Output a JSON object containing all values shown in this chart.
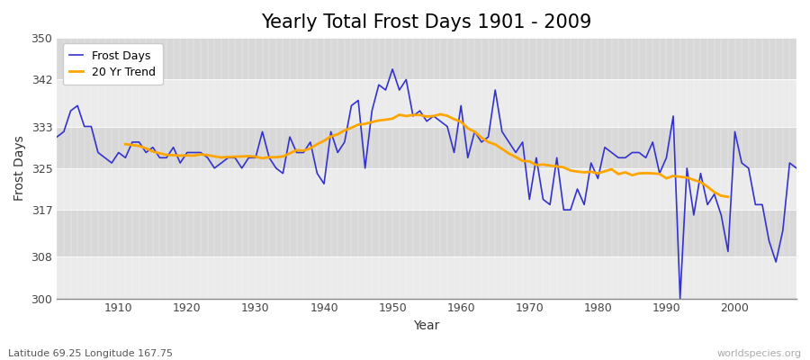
{
  "title": "Yearly Total Frost Days 1901 - 2009",
  "xlabel": "Year",
  "ylabel": "Frost Days",
  "subtitle": "Latitude 69.25 Longitude 167.75",
  "watermark": "worldspecies.org",
  "bg_color": "#ffffff",
  "plot_bg_color": "#e8e8e8",
  "band_color_light": "#ebebeb",
  "band_color_dark": "#d8d8d8",
  "line_color": "#3333cc",
  "trend_color": "#FFA500",
  "ylim": [
    300,
    350
  ],
  "yticks": [
    300,
    308,
    317,
    325,
    333,
    342,
    350
  ],
  "xlim": [
    1901,
    2009
  ],
  "xticks": [
    1910,
    1920,
    1930,
    1940,
    1950,
    1960,
    1970,
    1980,
    1990,
    2000
  ],
  "years": [
    1901,
    1902,
    1903,
    1904,
    1905,
    1906,
    1907,
    1908,
    1909,
    1910,
    1911,
    1912,
    1913,
    1914,
    1915,
    1916,
    1917,
    1918,
    1919,
    1920,
    1921,
    1922,
    1923,
    1924,
    1925,
    1926,
    1927,
    1928,
    1929,
    1930,
    1931,
    1932,
    1933,
    1934,
    1935,
    1936,
    1937,
    1938,
    1939,
    1940,
    1941,
    1942,
    1943,
    1944,
    1945,
    1946,
    1947,
    1948,
    1949,
    1950,
    1951,
    1952,
    1953,
    1954,
    1955,
    1956,
    1957,
    1958,
    1959,
    1960,
    1961,
    1962,
    1963,
    1964,
    1965,
    1966,
    1967,
    1968,
    1969,
    1970,
    1971,
    1972,
    1973,
    1974,
    1975,
    1976,
    1977,
    1978,
    1979,
    1980,
    1981,
    1982,
    1983,
    1984,
    1985,
    1986,
    1987,
    1988,
    1989,
    1990,
    1991,
    1992,
    1993,
    1994,
    1995,
    1996,
    1997,
    1998,
    1999,
    2000,
    2001,
    2002,
    2003,
    2004,
    2005,
    2006,
    2007,
    2008,
    2009
  ],
  "frost_days": [
    331,
    332,
    336,
    337,
    333,
    333,
    328,
    327,
    326,
    328,
    327,
    330,
    330,
    328,
    329,
    327,
    327,
    329,
    326,
    328,
    328,
    328,
    327,
    325,
    326,
    327,
    327,
    325,
    327,
    327,
    332,
    327,
    325,
    324,
    331,
    328,
    328,
    330,
    324,
    322,
    332,
    328,
    330,
    337,
    338,
    325,
    336,
    341,
    340,
    344,
    340,
    342,
    335,
    336,
    334,
    335,
    334,
    333,
    328,
    337,
    327,
    332,
    330,
    331,
    340,
    332,
    330,
    328,
    330,
    319,
    327,
    319,
    318,
    327,
    317,
    317,
    321,
    318,
    326,
    323,
    329,
    328,
    327,
    327,
    328,
    328,
    327,
    330,
    324,
    327,
    335,
    300,
    325,
    316,
    324,
    318,
    320,
    316,
    309,
    332,
    326,
    325,
    318,
    318,
    311,
    307,
    313,
    326,
    325
  ]
}
